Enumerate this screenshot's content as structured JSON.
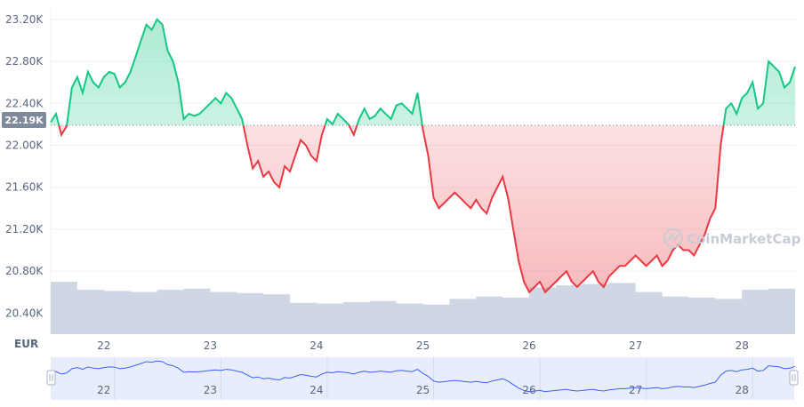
{
  "chart_data": {
    "type": "line",
    "baseline_label": "22.19K",
    "baseline_value": 22190,
    "currency": "EUR",
    "watermark": "CoinMarketCap",
    "ylim": [
      20200,
      23300
    ],
    "xlim": [
      21.5,
      28.5
    ],
    "y_ticks": [
      {
        "value": 23200,
        "label": "23.20K"
      },
      {
        "value": 22800,
        "label": "22.80K"
      },
      {
        "value": 22400,
        "label": "22.40K"
      },
      {
        "value": 22000,
        "label": "22.00K"
      },
      {
        "value": 21600,
        "label": "21.60K"
      },
      {
        "value": 21200,
        "label": "21.20K"
      },
      {
        "value": 20800,
        "label": "20.80K"
      },
      {
        "value": 20400,
        "label": "20.40K"
      }
    ],
    "x_ticks": [
      {
        "value": 22,
        "label": "22"
      },
      {
        "value": 23,
        "label": "23"
      },
      {
        "value": 24,
        "label": "24"
      },
      {
        "value": 25,
        "label": "25"
      },
      {
        "value": 26,
        "label": "26"
      },
      {
        "value": 27,
        "label": "27"
      },
      {
        "value": 28,
        "label": "28"
      }
    ],
    "colors": {
      "up": "#16c784",
      "down": "#ea3943",
      "volume": "#cfd6e4",
      "navigator_line": "#3861fb",
      "navigator_fill": "#e8edfc"
    },
    "series": [
      {
        "x": [
          21.5,
          21.55,
          21.6,
          21.65,
          21.7,
          21.75,
          21.8,
          21.85,
          21.9,
          21.95,
          22.0,
          22.05,
          22.1,
          22.15,
          22.2,
          22.25,
          22.3,
          22.35,
          22.4,
          22.45,
          22.5,
          22.55,
          22.6,
          22.65,
          22.7,
          22.75,
          22.8,
          22.85,
          22.9,
          22.95,
          23.0,
          23.05,
          23.1,
          23.15,
          23.2,
          23.25,
          23.3,
          23.35,
          23.4,
          23.45,
          23.5,
          23.55,
          23.6,
          23.65,
          23.7,
          23.75,
          23.8,
          23.85,
          23.9,
          23.95,
          24.0,
          24.05,
          24.1,
          24.15,
          24.2,
          24.25,
          24.3,
          24.35,
          24.4,
          24.45,
          24.5,
          24.55,
          24.6,
          24.65,
          24.7,
          24.75,
          24.8,
          24.85,
          24.9,
          24.95,
          25.0,
          25.05,
          25.1,
          25.15,
          25.2,
          25.25,
          25.3,
          25.35,
          25.4,
          25.45,
          25.5,
          25.55,
          25.6,
          25.65,
          25.7,
          25.75,
          25.8,
          25.85,
          25.9,
          25.95,
          26.0,
          26.05,
          26.1,
          26.15,
          26.2,
          26.25,
          26.3,
          26.35,
          26.4,
          26.45,
          26.5,
          26.55,
          26.6,
          26.65,
          26.7,
          26.75,
          26.8,
          26.85,
          26.9,
          26.95,
          27.0,
          27.05,
          27.1,
          27.15,
          27.2,
          27.25,
          27.3,
          27.35,
          27.4,
          27.45,
          27.5,
          27.55,
          27.6,
          27.65,
          27.7,
          27.75,
          27.8,
          27.85,
          27.9,
          27.95,
          28.0,
          28.05,
          28.1,
          28.15,
          28.2,
          28.25,
          28.3,
          28.35,
          28.4,
          28.45,
          28.5
        ],
        "y": [
          22220,
          22300,
          22100,
          22180,
          22550,
          22650,
          22500,
          22700,
          22600,
          22550,
          22650,
          22700,
          22680,
          22550,
          22600,
          22700,
          22850,
          23000,
          23150,
          23100,
          23200,
          23150,
          22900,
          22800,
          22600,
          22250,
          22300,
          22280,
          22300,
          22350,
          22400,
          22450,
          22400,
          22500,
          22450,
          22350,
          22250,
          22000,
          21780,
          21850,
          21700,
          21750,
          21650,
          21600,
          21800,
          21750,
          21900,
          22050,
          22000,
          21900,
          21850,
          22100,
          22250,
          22200,
          22300,
          22250,
          22200,
          22100,
          22250,
          22350,
          22250,
          22280,
          22350,
          22300,
          22250,
          22380,
          22400,
          22350,
          22300,
          22500,
          22150,
          21900,
          21500,
          21400,
          21450,
          21500,
          21550,
          21500,
          21450,
          21400,
          21480,
          21400,
          21350,
          21500,
          21600,
          21700,
          21500,
          21200,
          20900,
          20700,
          20600,
          20650,
          20700,
          20600,
          20650,
          20700,
          20750,
          20800,
          20700,
          20650,
          20700,
          20750,
          20800,
          20700,
          20650,
          20750,
          20800,
          20850,
          20850,
          20900,
          20950,
          20900,
          20850,
          20900,
          20950,
          20850,
          20900,
          21000,
          21050,
          21000,
          21000,
          20950,
          21050,
          21150,
          21300,
          21400,
          22000,
          22350,
          22400,
          22300,
          22450,
          22500,
          22600,
          22350,
          22400,
          22800,
          22750,
          22700,
          22550,
          22600,
          22750
        ]
      }
    ],
    "volume": {
      "x": [
        21.5,
        21.75,
        22.0,
        22.25,
        22.5,
        22.75,
        23.0,
        23.25,
        23.5,
        23.75,
        24.0,
        24.25,
        24.5,
        24.75,
        25.0,
        25.25,
        25.5,
        25.75,
        26.0,
        26.25,
        26.5,
        26.75,
        27.0,
        27.25,
        27.5,
        27.75,
        28.0,
        28.25,
        28.5
      ],
      "values": [
        0.92,
        0.78,
        0.76,
        0.74,
        0.78,
        0.8,
        0.74,
        0.72,
        0.7,
        0.55,
        0.54,
        0.56,
        0.58,
        0.54,
        0.52,
        0.62,
        0.66,
        0.64,
        0.82,
        0.86,
        0.88,
        0.9,
        0.74,
        0.66,
        0.64,
        0.62,
        0.78,
        0.8,
        0.82
      ]
    }
  }
}
